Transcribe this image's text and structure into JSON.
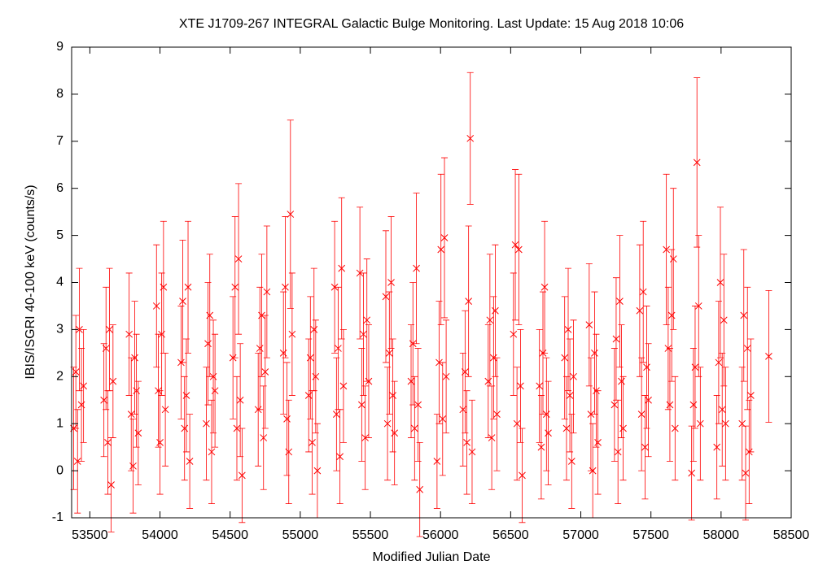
{
  "chart_data": {
    "type": "scatter",
    "title": "XTE J1709-267   INTEGRAL Galactic Bulge Monitoring.  Last Update: 15 Aug 2018 10:06",
    "xlabel": "Modified Julian Date",
    "ylabel": "IBIS/ISGRI 40-100 keV (counts/s)",
    "color": "#ff0000",
    "xlim": [
      53370,
      58500
    ],
    "ylim": [
      -1,
      9
    ],
    "xticks": [
      53500,
      54000,
      54500,
      55000,
      55500,
      56000,
      56500,
      57000,
      57500,
      58000,
      58500
    ],
    "yticks": [
      -1,
      0,
      1,
      2,
      3,
      4,
      5,
      6,
      7,
      8,
      9
    ],
    "x": [
      53385,
      53400,
      53412,
      53425,
      53440,
      53455,
      53600,
      53615,
      53628,
      53640,
      53652,
      53665,
      53780,
      53795,
      53808,
      53820,
      53832,
      53845,
      53975,
      53988,
      54000,
      54012,
      54025,
      54038,
      54150,
      54162,
      54175,
      54188,
      54200,
      54212,
      54330,
      54342,
      54355,
      54368,
      54380,
      54392,
      54520,
      54535,
      54548,
      54560,
      54572,
      54585,
      54700,
      54712,
      54725,
      54738,
      54750,
      54762,
      54880,
      54893,
      54905,
      54918,
      54930,
      54942,
      55060,
      55072,
      55085,
      55098,
      55110,
      55122,
      55245,
      55258,
      55270,
      55283,
      55295,
      55308,
      55425,
      55438,
      55450,
      55463,
      55475,
      55488,
      55610,
      55622,
      55635,
      55648,
      55660,
      55672,
      55790,
      55803,
      55815,
      55828,
      55840,
      55852,
      55975,
      55990,
      56003,
      56015,
      56028,
      56040,
      56160,
      56175,
      56188,
      56200,
      56212,
      56225,
      56340,
      56352,
      56365,
      56378,
      56390,
      56402,
      56520,
      56533,
      56545,
      56558,
      56570,
      56582,
      56705,
      56718,
      56730,
      56742,
      56755,
      56768,
      56885,
      56898,
      56910,
      56922,
      56935,
      56948,
      57060,
      57072,
      57085,
      57098,
      57110,
      57122,
      57240,
      57252,
      57265,
      57278,
      57290,
      57302,
      57420,
      57433,
      57445,
      57458,
      57470,
      57482,
      57610,
      57623,
      57635,
      57648,
      57660,
      57672,
      57790,
      57803,
      57815,
      57828,
      57840,
      57852,
      57970,
      57983,
      57995,
      58008,
      58020,
      58032,
      58150,
      58162,
      58175,
      58188,
      58200,
      58212,
      58340
    ],
    "values": [
      0.9,
      2.1,
      0.2,
      3.0,
      1.4,
      1.8,
      1.5,
      2.6,
      0.6,
      3.0,
      -0.3,
      1.9,
      2.9,
      1.2,
      0.1,
      2.4,
      1.7,
      0.8,
      3.5,
      1.7,
      0.6,
      2.9,
      3.9,
      1.3,
      2.3,
      3.6,
      0.9,
      1.6,
      3.9,
      0.2,
      1.0,
      2.7,
      3.3,
      0.4,
      2.0,
      1.7,
      2.4,
      3.9,
      0.9,
      4.5,
      1.5,
      -0.1,
      1.3,
      2.6,
      3.3,
      0.7,
      2.1,
      3.8,
      2.5,
      3.9,
      1.1,
      0.4,
      5.45,
      2.9,
      1.6,
      2.4,
      0.6,
      3.0,
      2.0,
      0.0,
      3.9,
      1.2,
      2.6,
      0.3,
      4.3,
      1.8,
      4.2,
      1.4,
      2.9,
      0.7,
      3.2,
      1.9,
      3.7,
      1.0,
      2.5,
      4.0,
      1.6,
      0.8,
      1.9,
      2.7,
      0.9,
      4.3,
      1.4,
      -0.4,
      0.2,
      2.3,
      4.7,
      1.1,
      4.95,
      2.0,
      1.3,
      2.1,
      0.6,
      3.6,
      7.06,
      0.4,
      1.9,
      3.2,
      0.7,
      2.4,
      3.4,
      1.2,
      2.9,
      4.8,
      1.0,
      4.7,
      1.8,
      -0.1,
      1.8,
      0.5,
      2.5,
      3.9,
      1.2,
      0.8,
      2.4,
      0.9,
      3.0,
      1.6,
      0.2,
      2.0,
      3.1,
      1.2,
      0.0,
      2.5,
      1.7,
      0.6,
      1.4,
      2.8,
      0.4,
      3.6,
      1.9,
      0.9,
      3.4,
      1.2,
      3.8,
      0.5,
      2.2,
      1.5,
      4.7,
      2.6,
      1.4,
      3.3,
      4.5,
      0.9,
      -0.05,
      1.4,
      2.2,
      6.55,
      3.5,
      1.0,
      0.5,
      2.3,
      4.0,
      1.3,
      3.2,
      1.0,
      1.0,
      3.3,
      -0.05,
      2.6,
      0.4,
      1.6,
      2.43
    ],
    "errors": [
      1.3,
      1.2,
      1.1,
      1.3,
      1.2,
      1.2,
      1.2,
      1.3,
      1.1,
      1.3,
      1.0,
      1.2,
      1.3,
      1.2,
      1.0,
      1.2,
      1.2,
      1.1,
      1.3,
      1.2,
      1.1,
      1.3,
      1.4,
      1.2,
      1.2,
      1.3,
      1.1,
      1.2,
      1.4,
      1.0,
      1.2,
      1.3,
      1.3,
      1.1,
      1.2,
      1.2,
      1.3,
      1.5,
      1.1,
      1.6,
      1.2,
      1.0,
      1.2,
      1.3,
      1.3,
      1.1,
      1.2,
      1.4,
      1.3,
      1.5,
      1.2,
      1.1,
      2.0,
      1.3,
      1.2,
      1.3,
      1.1,
      1.3,
      1.2,
      1.0,
      1.4,
      1.2,
      1.3,
      1.0,
      1.5,
      1.2,
      1.4,
      1.2,
      1.3,
      1.1,
      1.3,
      1.2,
      1.4,
      1.2,
      1.3,
      1.4,
      1.2,
      1.1,
      1.2,
      1.3,
      1.1,
      1.6,
      1.2,
      1.0,
      1.0,
      1.3,
      1.6,
      1.2,
      1.7,
      1.2,
      1.2,
      1.3,
      1.1,
      1.6,
      1.4,
      1.1,
      1.2,
      1.4,
      1.1,
      1.3,
      1.4,
      1.2,
      1.3,
      1.6,
      1.2,
      1.6,
      1.2,
      1.0,
      1.2,
      1.1,
      1.3,
      1.4,
      1.2,
      1.1,
      1.3,
      1.1,
      1.3,
      1.2,
      1.0,
      1.2,
      1.3,
      1.2,
      1.0,
      1.3,
      1.2,
      1.1,
      1.2,
      1.3,
      1.1,
      1.4,
      1.2,
      1.1,
      1.4,
      1.2,
      1.5,
      1.1,
      1.3,
      1.2,
      1.6,
      1.3,
      1.2,
      1.4,
      1.5,
      1.1,
      1.0,
      1.2,
      1.3,
      1.8,
      1.5,
      1.2,
      1.1,
      1.3,
      1.6,
      1.2,
      1.4,
      1.2,
      1.2,
      1.4,
      1.0,
      1.3,
      1.1,
      1.2,
      1.4
    ]
  }
}
